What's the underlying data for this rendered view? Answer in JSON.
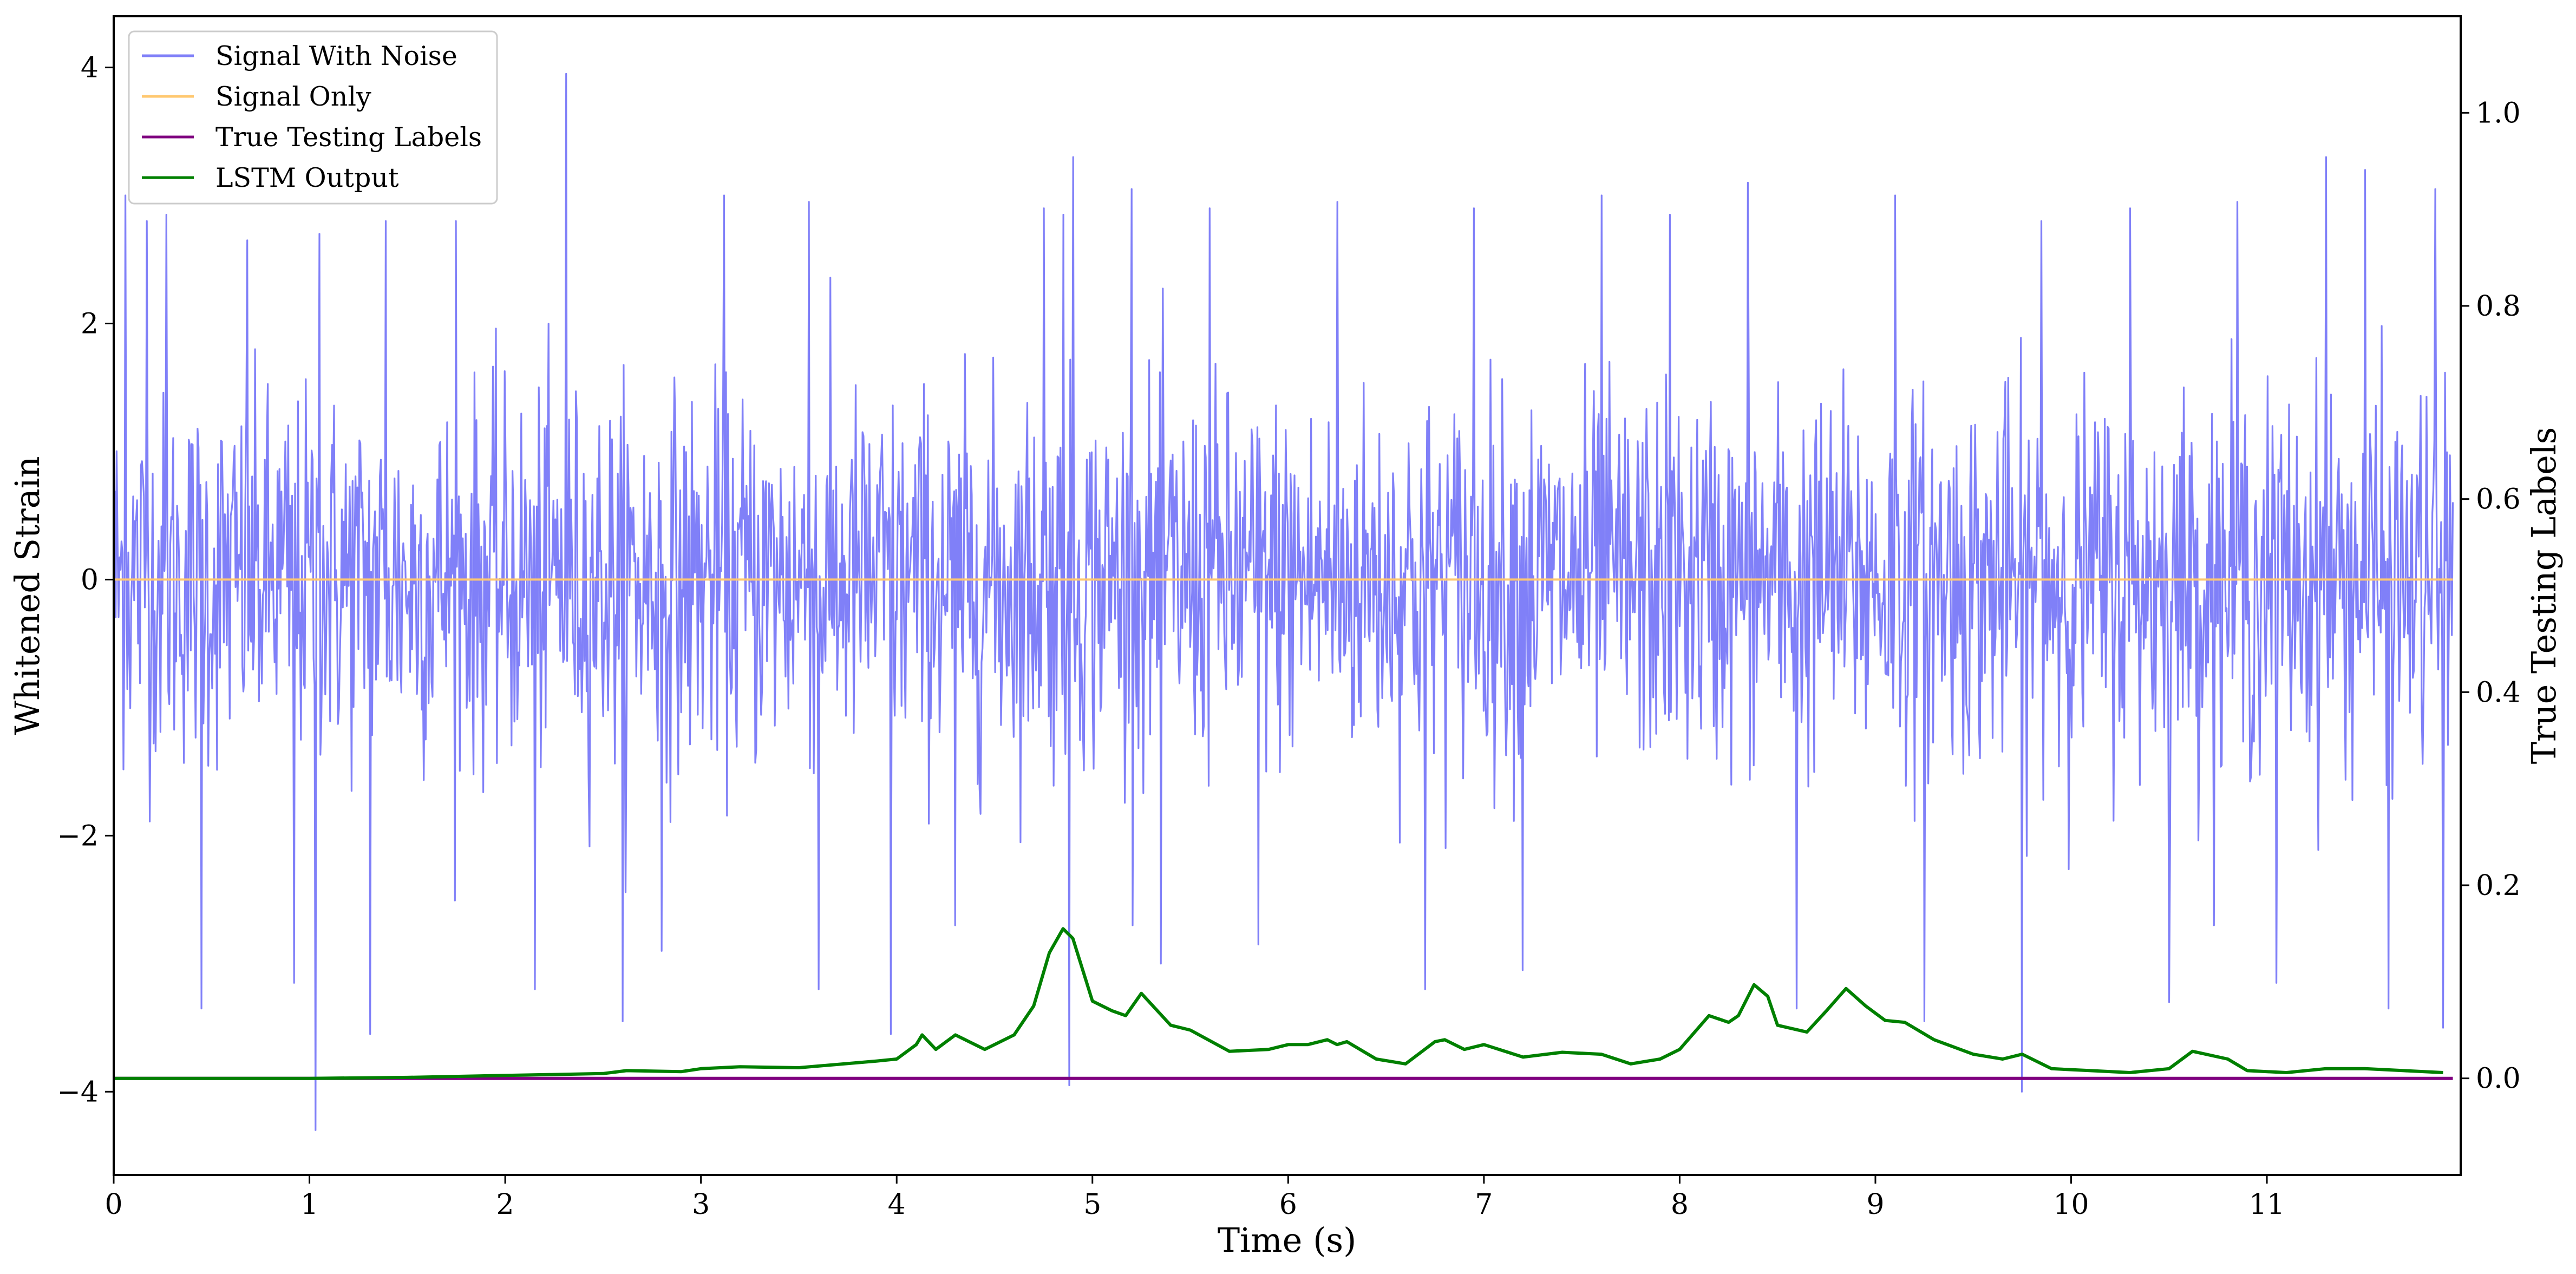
{
  "chart_data": {
    "type": "line",
    "xlabel": "Time (s)",
    "ylabel_left": "Whitened Strain",
    "ylabel_right": "True Testing Labels",
    "xlim": [
      0,
      11.99
    ],
    "ylim_left": [
      -4.65,
      4.4
    ],
    "ylim_right": [
      -0.1,
      1.1
    ],
    "x_ticks": [
      0,
      1,
      2,
      3,
      4,
      5,
      6,
      7,
      8,
      9,
      10,
      11
    ],
    "x_tick_labels": [
      "0",
      "1",
      "2",
      "3",
      "4",
      "5",
      "6",
      "7",
      "8",
      "9",
      "10",
      "11"
    ],
    "y_left_ticks": [
      -4,
      -2,
      0,
      2,
      4
    ],
    "y_left_tick_labels": [
      "−4",
      "−2",
      "0",
      "2",
      "4"
    ],
    "y_right_ticks": [
      0.0,
      0.2,
      0.4,
      0.6,
      0.8,
      1.0
    ],
    "y_right_tick_labels": [
      "0.0",
      "0.2",
      "0.4",
      "0.6",
      "0.8",
      "1.0"
    ],
    "grid": false,
    "legend_position": "top-left",
    "series": [
      {
        "name": "Signal With Noise",
        "axis": "left",
        "color": "#8080f8",
        "kind": "noise",
        "std": 0.72,
        "sample_count": 2400,
        "spikes": [
          {
            "x": 0.06,
            "y": 3.0
          },
          {
            "x": 0.17,
            "y": 2.8
          },
          {
            "x": 0.27,
            "y": 2.85
          },
          {
            "x": 0.45,
            "y": -3.35
          },
          {
            "x": 0.68,
            "y": 2.65
          },
          {
            "x": 0.92,
            "y": -3.15
          },
          {
            "x": 1.03,
            "y": -4.3
          },
          {
            "x": 1.05,
            "y": 2.7
          },
          {
            "x": 1.31,
            "y": -3.55
          },
          {
            "x": 1.39,
            "y": 2.8
          },
          {
            "x": 1.75,
            "y": 2.8
          },
          {
            "x": 2.15,
            "y": -3.2
          },
          {
            "x": 2.31,
            "y": 3.95
          },
          {
            "x": 2.6,
            "y": -3.45
          },
          {
            "x": 2.8,
            "y": -2.9
          },
          {
            "x": 3.12,
            "y": 3.0
          },
          {
            "x": 3.55,
            "y": 2.95
          },
          {
            "x": 3.6,
            "y": -3.2
          },
          {
            "x": 3.97,
            "y": -3.55
          },
          {
            "x": 4.3,
            "y": -2.7
          },
          {
            "x": 4.75,
            "y": 2.9
          },
          {
            "x": 4.85,
            "y": 2.85
          },
          {
            "x": 4.9,
            "y": 3.3
          },
          {
            "x": 4.88,
            "y": -3.95
          },
          {
            "x": 5.2,
            "y": 3.05
          },
          {
            "x": 5.35,
            "y": -3.0
          },
          {
            "x": 5.6,
            "y": 2.9
          },
          {
            "x": 5.85,
            "y": -2.85
          },
          {
            "x": 6.25,
            "y": 2.95
          },
          {
            "x": 6.7,
            "y": -3.2
          },
          {
            "x": 6.95,
            "y": 2.9
          },
          {
            "x": 7.2,
            "y": -3.05
          },
          {
            "x": 7.6,
            "y": 3.0
          },
          {
            "x": 7.95,
            "y": 2.85
          },
          {
            "x": 8.35,
            "y": 3.1
          },
          {
            "x": 8.6,
            "y": -3.35
          },
          {
            "x": 9.1,
            "y": 3.0
          },
          {
            "x": 9.25,
            "y": -3.45
          },
          {
            "x": 9.75,
            "y": -4.0
          },
          {
            "x": 9.85,
            "y": 2.8
          },
          {
            "x": 10.3,
            "y": 2.9
          },
          {
            "x": 10.5,
            "y": -3.3
          },
          {
            "x": 10.85,
            "y": 2.95
          },
          {
            "x": 11.05,
            "y": -3.15
          },
          {
            "x": 11.3,
            "y": 3.3
          },
          {
            "x": 11.5,
            "y": 3.2
          },
          {
            "x": 11.62,
            "y": -3.35
          },
          {
            "x": 11.86,
            "y": 3.05
          },
          {
            "x": 11.9,
            "y": -3.5
          }
        ]
      },
      {
        "name": "Signal Only",
        "axis": "left",
        "color": "#ffc870",
        "x": [
          0,
          11.95
        ],
        "y": [
          0,
          0
        ]
      },
      {
        "name": "True Testing Labels",
        "axis": "right",
        "color": "#800080",
        "x": [
          0,
          11.95
        ],
        "y": [
          0,
          0
        ]
      },
      {
        "name": "LSTM Output",
        "axis": "right",
        "color": "#008000",
        "x": [
          0,
          1.0,
          1.5,
          2.0,
          2.5,
          2.62,
          2.9,
          3.0,
          3.2,
          3.5,
          3.9,
          4.0,
          4.1,
          4.13,
          4.2,
          4.3,
          4.45,
          4.6,
          4.7,
          4.78,
          4.85,
          4.9,
          5.0,
          5.1,
          5.17,
          5.25,
          5.4,
          5.5,
          5.7,
          5.9,
          6.0,
          6.1,
          6.2,
          6.25,
          6.3,
          6.45,
          6.6,
          6.75,
          6.8,
          6.9,
          7.0,
          7.2,
          7.4,
          7.6,
          7.75,
          7.9,
          8.0,
          8.15,
          8.25,
          8.3,
          8.38,
          8.45,
          8.5,
          8.65,
          8.75,
          8.85,
          8.95,
          9.05,
          9.15,
          9.3,
          9.5,
          9.65,
          9.75,
          9.9,
          10.1,
          10.3,
          10.5,
          10.62,
          10.8,
          10.9,
          11.1,
          11.3,
          11.5,
          11.7,
          11.9
        ],
        "y": [
          0.0,
          0.0,
          0.001,
          0.003,
          0.005,
          0.008,
          0.007,
          0.01,
          0.012,
          0.011,
          0.018,
          0.02,
          0.035,
          0.045,
          0.03,
          0.045,
          0.03,
          0.045,
          0.075,
          0.13,
          0.155,
          0.145,
          0.08,
          0.07,
          0.065,
          0.088,
          0.055,
          0.05,
          0.028,
          0.03,
          0.035,
          0.035,
          0.04,
          0.035,
          0.038,
          0.02,
          0.015,
          0.038,
          0.04,
          0.03,
          0.035,
          0.022,
          0.027,
          0.025,
          0.015,
          0.02,
          0.03,
          0.065,
          0.058,
          0.065,
          0.097,
          0.085,
          0.055,
          0.048,
          0.07,
          0.093,
          0.075,
          0.06,
          0.058,
          0.04,
          0.025,
          0.02,
          0.025,
          0.01,
          0.008,
          0.006,
          0.01,
          0.028,
          0.02,
          0.008,
          0.006,
          0.01,
          0.01,
          0.008,
          0.006
        ]
      }
    ]
  }
}
